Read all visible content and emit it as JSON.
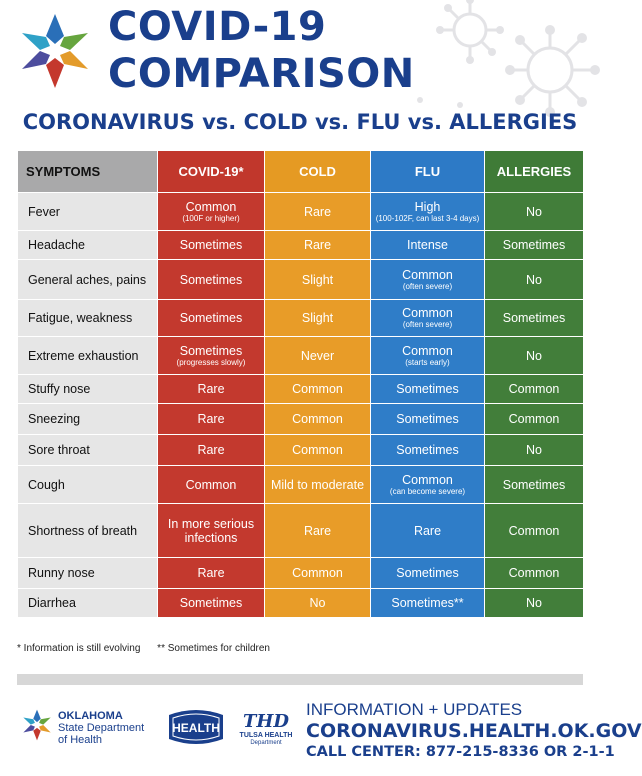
{
  "header": {
    "title_line1": "COVID-19",
    "title_line2": "COMPARISON",
    "subtitle": "CORONAVIRUS vs. COLD vs. FLU vs. ALLERGIES"
  },
  "table": {
    "columns": [
      "SYMPTOMS",
      "COVID-19*",
      "COLD",
      "FLU",
      "ALLERGIES"
    ],
    "rows": [
      {
        "symptom": "Fever",
        "covid": {
          "text": "Common",
          "note": "(100F or higher)"
        },
        "cold": {
          "text": "Rare",
          "note": ""
        },
        "flu": {
          "text": "High",
          "note": "(100-102F, can last 3-4 days)"
        },
        "allergies": {
          "text": "No",
          "note": ""
        }
      },
      {
        "symptom": "Headache",
        "covid": {
          "text": "Sometimes",
          "note": ""
        },
        "cold": {
          "text": "Rare",
          "note": ""
        },
        "flu": {
          "text": "Intense",
          "note": ""
        },
        "allergies": {
          "text": "Sometimes",
          "note": ""
        }
      },
      {
        "symptom": "General aches, pains",
        "covid": {
          "text": "Sometimes",
          "note": ""
        },
        "cold": {
          "text": "Slight",
          "note": ""
        },
        "flu": {
          "text": "Common",
          "note": "(often severe)"
        },
        "allergies": {
          "text": "No",
          "note": ""
        }
      },
      {
        "symptom": "Fatigue, weakness",
        "covid": {
          "text": "Sometimes",
          "note": ""
        },
        "cold": {
          "text": "Slight",
          "note": ""
        },
        "flu": {
          "text": "Common",
          "note": "(often severe)"
        },
        "allergies": {
          "text": "Sometimes",
          "note": ""
        }
      },
      {
        "symptom": "Extreme exhaustion",
        "covid": {
          "text": "Sometimes",
          "note": "(progresses slowly)"
        },
        "cold": {
          "text": "Never",
          "note": ""
        },
        "flu": {
          "text": "Common",
          "note": "(starts early)"
        },
        "allergies": {
          "text": "No",
          "note": ""
        }
      },
      {
        "symptom": "Stuffy nose",
        "covid": {
          "text": "Rare",
          "note": ""
        },
        "cold": {
          "text": "Common",
          "note": ""
        },
        "flu": {
          "text": "Sometimes",
          "note": ""
        },
        "allergies": {
          "text": "Common",
          "note": ""
        }
      },
      {
        "symptom": "Sneezing",
        "covid": {
          "text": "Rare",
          "note": ""
        },
        "cold": {
          "text": "Common",
          "note": ""
        },
        "flu": {
          "text": "Sometimes",
          "note": ""
        },
        "allergies": {
          "text": "Common",
          "note": ""
        }
      },
      {
        "symptom": "Sore throat",
        "covid": {
          "text": "Rare",
          "note": ""
        },
        "cold": {
          "text": "Common",
          "note": ""
        },
        "flu": {
          "text": "Sometimes",
          "note": ""
        },
        "allergies": {
          "text": "No",
          "note": ""
        }
      },
      {
        "symptom": "Cough",
        "covid": {
          "text": "Common",
          "note": ""
        },
        "cold": {
          "text": "Mild to moderate",
          "note": ""
        },
        "flu": {
          "text": "Common",
          "note": "(can become severe)"
        },
        "allergies": {
          "text": "Sometimes",
          "note": ""
        }
      },
      {
        "symptom": "Shortness of breath",
        "covid": {
          "text": "In more serious infections",
          "note": ""
        },
        "cold": {
          "text": "Rare",
          "note": ""
        },
        "flu": {
          "text": "Rare",
          "note": ""
        },
        "allergies": {
          "text": "Common",
          "note": ""
        }
      },
      {
        "symptom": "Runny nose",
        "covid": {
          "text": "Rare",
          "note": ""
        },
        "cold": {
          "text": "Common",
          "note": ""
        },
        "flu": {
          "text": "Sometimes",
          "note": ""
        },
        "allergies": {
          "text": "Common",
          "note": ""
        }
      },
      {
        "symptom": "Diarrhea",
        "covid": {
          "text": "Sometimes",
          "note": ""
        },
        "cold": {
          "text": "No",
          "note": ""
        },
        "flu": {
          "text": "Sometimes**",
          "note": ""
        },
        "allergies": {
          "text": "No",
          "note": ""
        }
      }
    ]
  },
  "footnotes": {
    "star": "* Information is still evolving",
    "double_star": "** Sometimes for children"
  },
  "footer": {
    "osdh_line1": "OKLAHOMA",
    "osdh_line2": "State Department",
    "osdh_line3": "of Health",
    "health_logo_text": "HEALTH",
    "tulsa_abbrev": "THD",
    "tulsa_name": "TULSA HEALTH",
    "tulsa_dept": "Department",
    "info_heading": "INFORMATION + UPDATES",
    "info_url": "CORONAVIRUS.HEALTH.OK.GOV",
    "info_call": "CALL CENTER: 877-215-8336 OR 2-1-1"
  },
  "colors": {
    "covid": "#c3392e",
    "cold": "#e89c28",
    "flu": "#2f7dc8",
    "allergies": "#427e3a",
    "header_gray": "#a9a9aa",
    "symptom_bg": "#e6e6e6",
    "title_blue": "#1a3f8c"
  },
  "icons": [
    "oklahoma-star-logo-icon",
    "virus-decoration-icon",
    "health-badge-icon"
  ]
}
